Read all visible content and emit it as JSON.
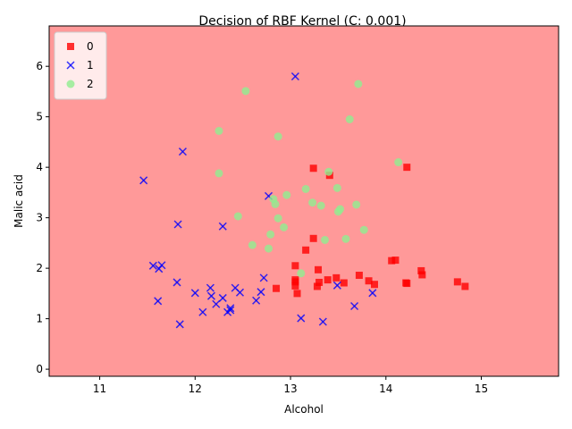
{
  "chart_data": {
    "type": "scatter",
    "title": "Decision of RBF Kernel (C: 0.001)",
    "xlabel": "Alcohol",
    "ylabel": "Malic acid",
    "xlim": [
      10.47,
      15.81
    ],
    "ylim": [
      -0.14,
      6.8
    ],
    "xticks": [
      11,
      12,
      13,
      14,
      15
    ],
    "yticks": [
      0,
      1,
      2,
      3,
      4,
      5,
      6
    ],
    "grid": false,
    "legend_position": "top-left",
    "background_region_color": "#ff9999",
    "series": [
      {
        "name": "0",
        "marker": "square",
        "color": "#ff0000",
        "points": [
          [
            13.24,
            3.98
          ],
          [
            14.22,
            4.0
          ],
          [
            13.41,
            3.84
          ],
          [
            13.16,
            2.36
          ],
          [
            13.24,
            2.59
          ],
          [
            13.05,
            2.05
          ],
          [
            14.06,
            2.15
          ],
          [
            14.1,
            2.16
          ],
          [
            13.29,
            1.97
          ],
          [
            14.37,
            1.95
          ],
          [
            14.38,
            1.87
          ],
          [
            13.72,
            1.86
          ],
          [
            13.05,
            1.77
          ],
          [
            13.39,
            1.77
          ],
          [
            13.48,
            1.81
          ],
          [
            13.3,
            1.72
          ],
          [
            13.56,
            1.71
          ],
          [
            13.82,
            1.75
          ],
          [
            13.88,
            1.68
          ],
          [
            14.22,
            1.7
          ],
          [
            14.21,
            1.71
          ],
          [
            14.75,
            1.73
          ],
          [
            14.83,
            1.64
          ],
          [
            12.85,
            1.6
          ],
          [
            13.28,
            1.64
          ],
          [
            13.05,
            1.65
          ],
          [
            13.07,
            1.5
          ],
          [
            13.05,
            1.73
          ]
        ]
      },
      {
        "name": "1",
        "marker": "x",
        "color": "#0000ff",
        "points": [
          [
            13.05,
            5.8
          ],
          [
            11.87,
            4.31
          ],
          [
            11.46,
            3.74
          ],
          [
            12.77,
            3.43
          ],
          [
            11.82,
            2.87
          ],
          [
            12.29,
            2.83
          ],
          [
            11.56,
            2.05
          ],
          [
            11.62,
            1.99
          ],
          [
            11.65,
            2.06
          ],
          [
            11.81,
            1.72
          ],
          [
            12.72,
            1.81
          ],
          [
            12.17,
            1.45
          ],
          [
            12.16,
            1.61
          ],
          [
            12.42,
            1.61
          ],
          [
            12.47,
            1.52
          ],
          [
            12.69,
            1.53
          ],
          [
            12.0,
            1.51
          ],
          [
            12.29,
            1.41
          ],
          [
            11.61,
            1.35
          ],
          [
            12.22,
            1.29
          ],
          [
            12.64,
            1.36
          ],
          [
            12.08,
            1.13
          ],
          [
            12.34,
            1.13
          ],
          [
            12.37,
            1.17
          ],
          [
            12.37,
            1.21
          ],
          [
            13.11,
            1.01
          ],
          [
            13.34,
            0.94
          ],
          [
            11.84,
            0.89
          ],
          [
            13.67,
            1.25
          ],
          [
            13.86,
            1.51
          ],
          [
            13.49,
            1.66
          ]
        ]
      },
      {
        "name": "2",
        "marker": "circle",
        "color": "#90ee90",
        "points": [
          [
            12.53,
            5.51
          ],
          [
            13.71,
            5.65
          ],
          [
            12.25,
            4.72
          ],
          [
            12.87,
            4.61
          ],
          [
            13.62,
            4.95
          ],
          [
            14.13,
            4.1
          ],
          [
            12.25,
            3.88
          ],
          [
            13.4,
            3.91
          ],
          [
            13.16,
            3.57
          ],
          [
            13.49,
            3.59
          ],
          [
            12.82,
            3.37
          ],
          [
            12.84,
            3.27
          ],
          [
            12.96,
            3.45
          ],
          [
            13.23,
            3.3
          ],
          [
            13.32,
            3.24
          ],
          [
            13.69,
            3.26
          ],
          [
            13.5,
            3.12
          ],
          [
            13.52,
            3.17
          ],
          [
            12.45,
            3.03
          ],
          [
            12.87,
            2.99
          ],
          [
            12.93,
            2.81
          ],
          [
            13.77,
            2.76
          ],
          [
            12.79,
            2.67
          ],
          [
            13.58,
            2.58
          ],
          [
            13.36,
            2.56
          ],
          [
            12.6,
            2.46
          ],
          [
            12.77,
            2.39
          ],
          [
            13.11,
            1.9
          ]
        ]
      }
    ]
  }
}
